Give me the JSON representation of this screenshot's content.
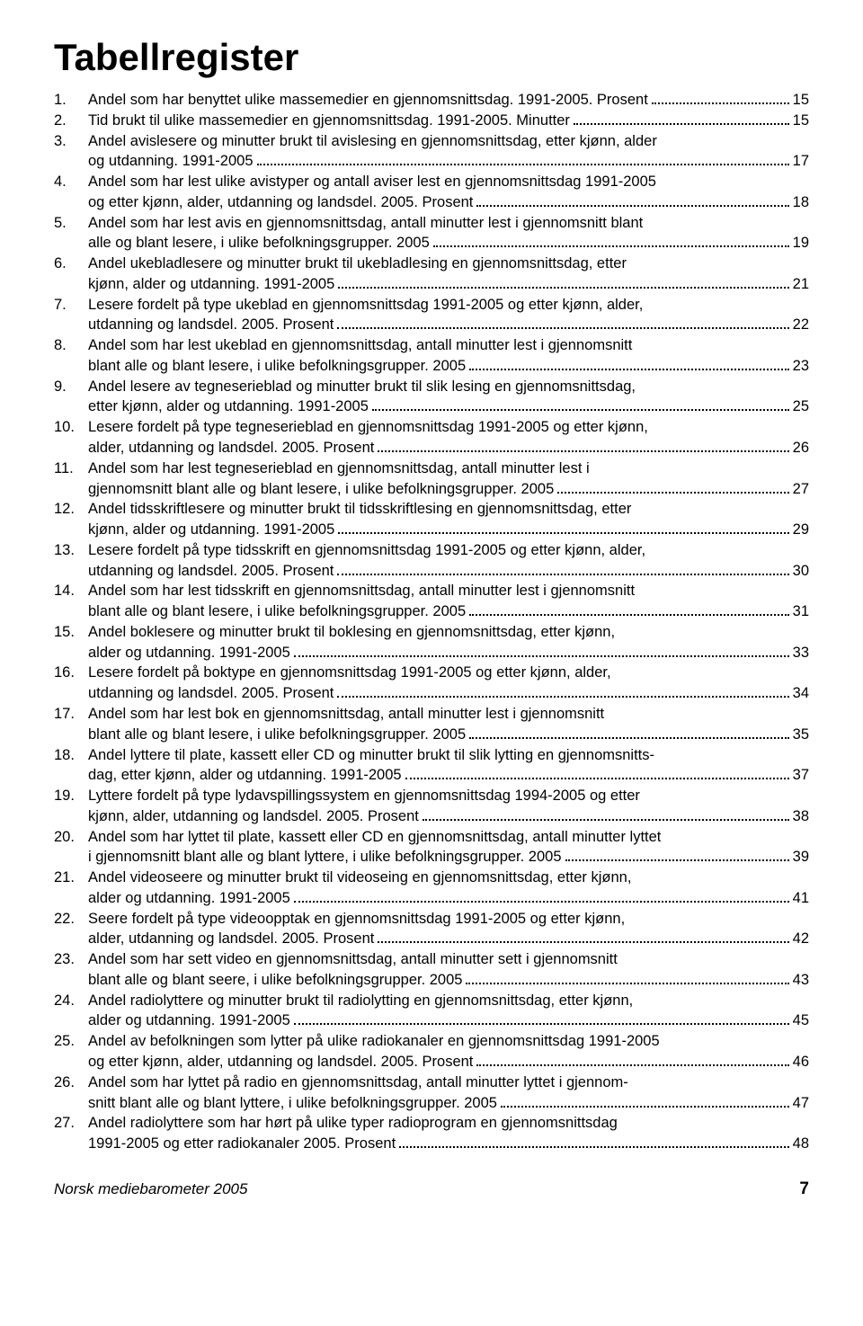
{
  "title": "Tabellregister",
  "footer": {
    "publication": "Norsk mediebarometer 2005",
    "page": "7"
  },
  "entries": [
    {
      "num": "1.",
      "lines": [
        "Andel som har benyttet ulike massemedier en gjennomsnittsdag. 1991-2005. Prosent"
      ],
      "page": "15"
    },
    {
      "num": "2.",
      "lines": [
        "Tid brukt til ulike massemedier en gjennomsnittsdag. 1991-2005. Minutter"
      ],
      "page": "15"
    },
    {
      "num": "3.",
      "lines": [
        "Andel avislesere og minutter brukt til avislesing en gjennomsnittsdag, etter kjønn, alder",
        "og utdanning. 1991-2005"
      ],
      "page": "17"
    },
    {
      "num": "4.",
      "lines": [
        "Andel som har lest ulike avistyper og antall aviser lest en gjennomsnittsdag 1991-2005",
        "og etter kjønn, alder, utdanning og landsdel. 2005. Prosent"
      ],
      "page": "18"
    },
    {
      "num": "5.",
      "lines": [
        "Andel som har lest avis en gjennomsnittsdag, antall minutter lest i gjennomsnitt blant",
        "alle og blant lesere, i ulike befolkningsgrupper. 2005"
      ],
      "page": "19"
    },
    {
      "num": "6.",
      "lines": [
        "Andel ukebladlesere og minutter brukt til ukebladlesing en gjennomsnittsdag, etter",
        "kjønn, alder og utdanning. 1991-2005"
      ],
      "page": "21"
    },
    {
      "num": "7.",
      "lines": [
        "Lesere fordelt på type ukeblad en gjennomsnittsdag 1991-2005 og etter kjønn, alder,",
        "utdanning og landsdel. 2005. Prosent"
      ],
      "page": "22"
    },
    {
      "num": "8.",
      "lines": [
        "Andel som har lest ukeblad en gjennomsnittsdag, antall minutter lest i gjennomsnitt",
        "blant alle og blant lesere, i ulike befolkningsgrupper. 2005"
      ],
      "page": "23"
    },
    {
      "num": "9.",
      "lines": [
        "Andel lesere av tegneserieblad og minutter brukt til slik lesing en gjennomsnittsdag,",
        "etter kjønn, alder og utdanning. 1991-2005"
      ],
      "page": "25"
    },
    {
      "num": "10.",
      "lines": [
        "Lesere fordelt på  type tegneserieblad en gjennomsnittsdag 1991-2005 og etter kjønn,",
        "alder, utdanning og landsdel. 2005. Prosent"
      ],
      "page": "26"
    },
    {
      "num": "11.",
      "lines": [
        "Andel som har lest tegneserieblad en gjennomsnittsdag, antall minutter lest i",
        "gjennomsnitt blant alle og blant lesere, i ulike befolkningsgrupper. 2005"
      ],
      "page": "27"
    },
    {
      "num": "12.",
      "lines": [
        "Andel tidsskriftlesere og minutter brukt til tidsskriftlesing en gjennomsnittsdag, etter",
        "kjønn, alder og utdanning. 1991-2005"
      ],
      "page": "29"
    },
    {
      "num": "13.",
      "lines": [
        "Lesere fordelt på type tidsskrift en gjennomsnittsdag 1991-2005 og etter  kjønn, alder,",
        "utdanning og landsdel. 2005. Prosent"
      ],
      "page": "30"
    },
    {
      "num": "14.",
      "lines": [
        "Andel som har lest tidsskrift en gjennomsnittsdag, antall minutter lest i gjennomsnitt",
        "blant alle og blant lesere, i ulike befolkningsgrupper. 2005"
      ],
      "page": "31"
    },
    {
      "num": "15.",
      "lines": [
        "Andel boklesere og minutter brukt til boklesing en gjennomsnittsdag, etter kjønn,",
        "alder og utdanning. 1991-2005"
      ],
      "page": "33"
    },
    {
      "num": "16.",
      "lines": [
        "Lesere fordelt på  boktype en gjennomsnittsdag 1991-2005 og etter kjønn, alder,",
        "utdanning og landsdel. 2005. Prosent"
      ],
      "page": "34"
    },
    {
      "num": "17.",
      "lines": [
        "Andel som har lest bok en gjennomsnittsdag, antall minutter lest i gjennomsnitt",
        "blant alle og blant lesere, i ulike befolkningsgrupper. 2005"
      ],
      "page": "35"
    },
    {
      "num": "18.",
      "lines": [
        "Andel lyttere til plate, kassett eller CD og minutter brukt til slik lytting en gjennomsnitts-",
        "dag, etter kjønn, alder og utdanning. 1991-2005"
      ],
      "page": "37"
    },
    {
      "num": "19.",
      "lines": [
        "Lyttere fordelt på  type lydavspillingssystem en gjennomsnittsdag 1994-2005 og etter",
        "kjønn, alder, utdanning og landsdel. 2005. Prosent"
      ],
      "page": "38"
    },
    {
      "num": "20.",
      "lines": [
        "Andel som har lyttet til plate, kassett eller CD en gjennomsnittsdag, antall minutter lyttet",
        "i gjennomsnitt blant alle og blant lyttere, i ulike befolkningsgrupper. 2005"
      ],
      "page": "39"
    },
    {
      "num": "21.",
      "lines": [
        "Andel videoseere og minutter brukt til videoseing en gjennomsnittsdag, etter  kjønn,",
        "alder og utdanning. 1991-2005"
      ],
      "page": "41"
    },
    {
      "num": "22.",
      "lines": [
        "Seere fordelt på type videoopptak en gjennomsnittsdag 1991-2005 og etter kjønn,",
        "alder, utdanning og landsdel. 2005. Prosent"
      ],
      "page": "42"
    },
    {
      "num": "23.",
      "lines": [
        "Andel som har sett video en gjennomsnittsdag, antall minutter sett i gjennomsnitt",
        "blant alle og blant seere, i ulike befolkningsgrupper. 2005"
      ],
      "page": "43"
    },
    {
      "num": "24.",
      "lines": [
        "Andel radiolyttere og minutter brukt til radiolytting en gjennomsnittsdag, etter kjønn,",
        "alder og utdanning. 1991-2005"
      ],
      "page": "45"
    },
    {
      "num": "25.",
      "lines": [
        "Andel av befolkningen som lytter på ulike radiokanaler en gjennomsnittsdag 1991-2005",
        "og etter kjønn, alder, utdanning og landsdel. 2005. Prosent"
      ],
      "page": "46"
    },
    {
      "num": "26.",
      "lines": [
        "Andel som har lyttet på radio en gjennomsnittsdag, antall minutter lyttet i gjennom-",
        "snitt blant alle og blant lyttere, i ulike befolkningsgrupper. 2005"
      ],
      "page": "47"
    },
    {
      "num": "27.",
      "lines": [
        "Andel radiolyttere som har hørt på ulike typer radioprogram en gjennomsnittsdag",
        "1991-2005 og etter radiokanaler 2005. Prosent"
      ],
      "page": "48"
    }
  ]
}
